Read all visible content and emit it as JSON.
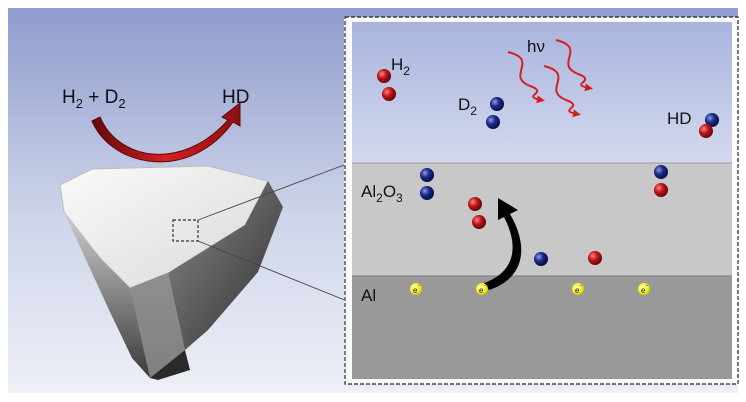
{
  "left": {
    "reactant_h": "H",
    "reactant_h_sub": "2",
    "plus": " + ",
    "reactant_d": "D",
    "reactant_d_sub": "2",
    "product": "HD"
  },
  "inset": {
    "h2": "H",
    "h2_sub": "2",
    "d2": "D",
    "d2_sub": "2",
    "hd": "HD",
    "light": "hν",
    "oxide_al": "Al",
    "oxide_al_sub": "2",
    "oxide_o": "O",
    "oxide_o_sub": "3",
    "metal": "Al",
    "electrons": [
      "e",
      "e",
      "e",
      "e"
    ],
    "electron_charge": "-"
  },
  "colors": {
    "hydrogen": "#c0141a",
    "deuterium": "#1c2a8c",
    "electron": "#f2ef1c",
    "arrow_red": "#d42020",
    "oxide": "#c8c8c8",
    "metal": "#9a9a9a"
  }
}
